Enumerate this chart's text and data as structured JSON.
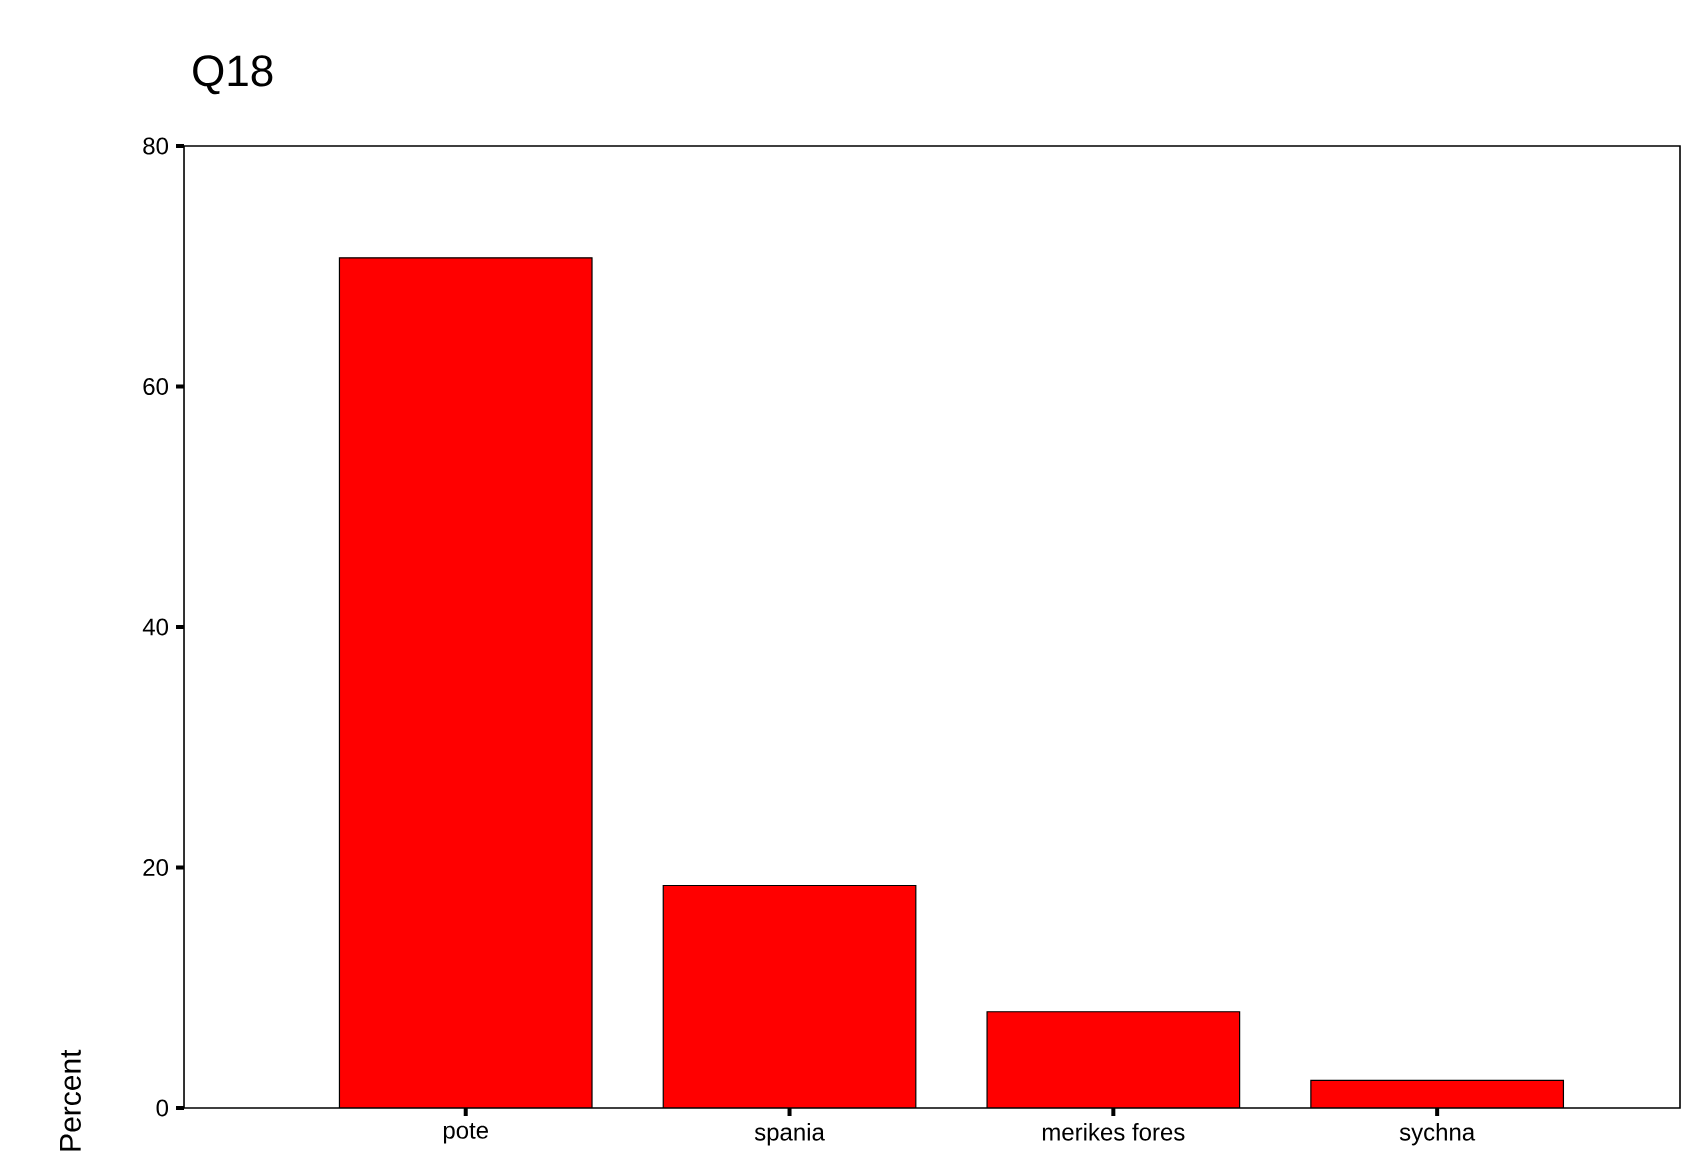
{
  "chart_data": {
    "type": "bar",
    "title": "Q18",
    "ylabel": "Percent",
    "categories": [
      "pote",
      "spania",
      "merikes fores",
      "sychna"
    ],
    "values": [
      70.7,
      18.5,
      8.0,
      2.3
    ],
    "color": "#ff0000",
    "ylim": [
      0,
      80
    ],
    "yticks": [
      0,
      20,
      40,
      60,
      80
    ]
  }
}
